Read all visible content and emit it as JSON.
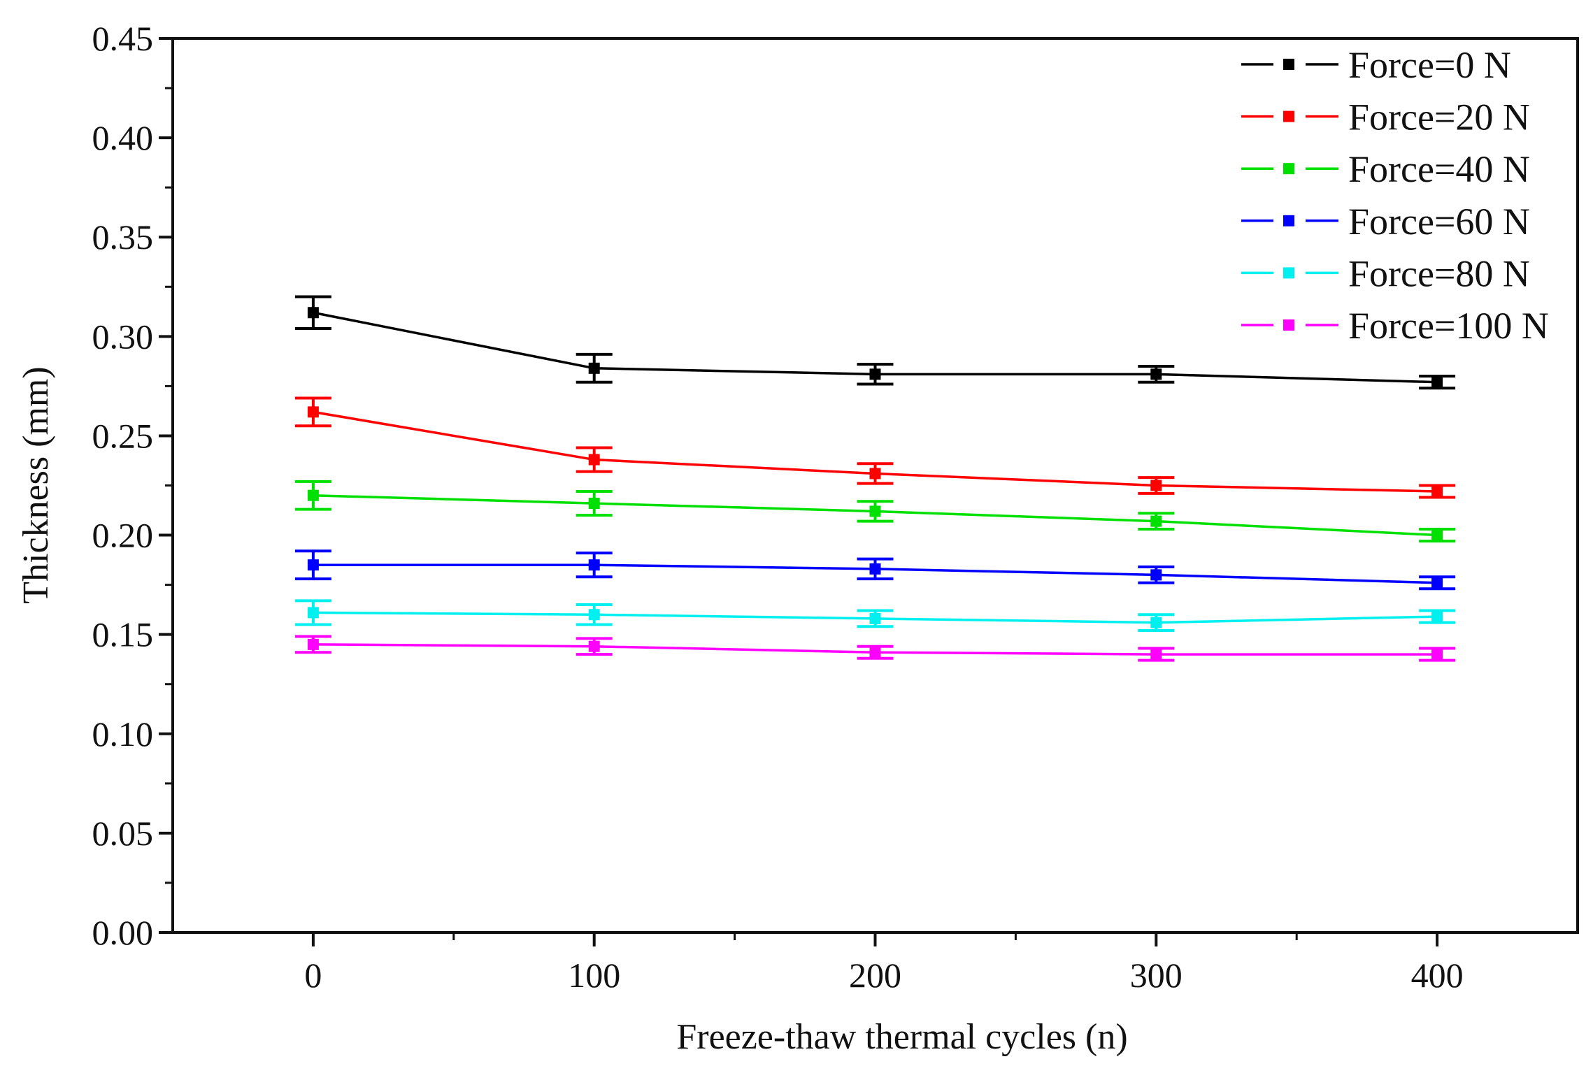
{
  "chart_data": {
    "type": "line",
    "title": "",
    "xlabel": "Freeze-thaw thermal cycles (n)",
    "ylabel": "Thickness (mm)",
    "xlim": [
      -50,
      450
    ],
    "ylim": [
      0,
      0.45
    ],
    "x_ticks": [
      0,
      100,
      200,
      300,
      400
    ],
    "x_tick_labels": [
      "0",
      "100",
      "200",
      "300",
      "400"
    ],
    "y_ticks": [
      0,
      0.05,
      0.1,
      0.15,
      0.2,
      0.25,
      0.3,
      0.35,
      0.4,
      0.45
    ],
    "y_tick_labels": [
      "0.00",
      "0.05",
      "0.10",
      "0.15",
      "0.20",
      "0.25",
      "0.30",
      "0.35",
      "0.40",
      "0.45"
    ],
    "grid": false,
    "legend_position": "top-right",
    "x": [
      0,
      100,
      200,
      300,
      400
    ],
    "series": [
      {
        "name": "Force=0 N",
        "color": "#000000",
        "values": [
          0.312,
          0.284,
          0.281,
          0.281,
          0.277
        ],
        "errors": [
          0.008,
          0.007,
          0.005,
          0.004,
          0.003
        ]
      },
      {
        "name": "Force=20 N",
        "color": "#ff0000",
        "values": [
          0.262,
          0.238,
          0.231,
          0.225,
          0.222
        ],
        "errors": [
          0.007,
          0.006,
          0.005,
          0.004,
          0.003
        ]
      },
      {
        "name": "Force=40 N",
        "color": "#00e000",
        "values": [
          0.22,
          0.216,
          0.212,
          0.207,
          0.2
        ],
        "errors": [
          0.007,
          0.006,
          0.005,
          0.004,
          0.003
        ]
      },
      {
        "name": "Force=60 N",
        "color": "#0000ff",
        "values": [
          0.185,
          0.185,
          0.183,
          0.18,
          0.176
        ],
        "errors": [
          0.007,
          0.006,
          0.005,
          0.004,
          0.003
        ]
      },
      {
        "name": "Force=80 N",
        "color": "#00f0f0",
        "values": [
          0.161,
          0.16,
          0.158,
          0.156,
          0.159
        ],
        "errors": [
          0.006,
          0.005,
          0.004,
          0.004,
          0.003
        ]
      },
      {
        "name": "Force=100 N",
        "color": "#ff00ff",
        "values": [
          0.145,
          0.144,
          0.141,
          0.14,
          0.14
        ],
        "errors": [
          0.004,
          0.004,
          0.003,
          0.003,
          0.003
        ]
      }
    ]
  }
}
